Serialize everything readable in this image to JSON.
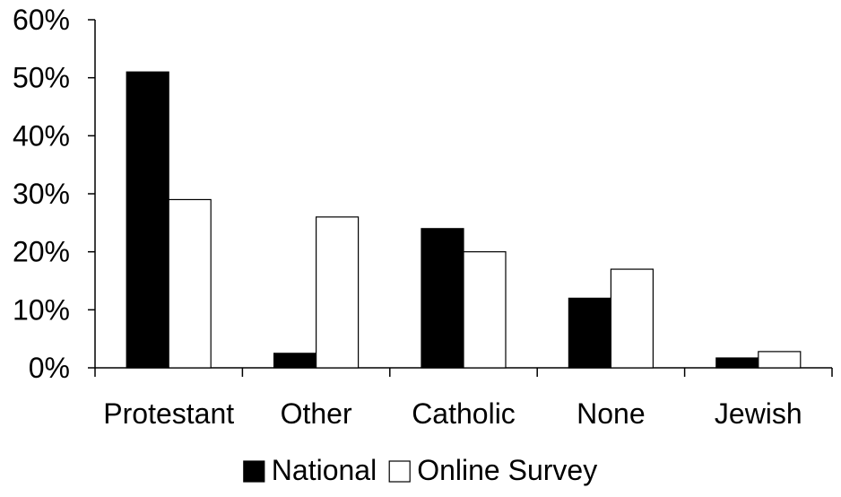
{
  "chart_data": {
    "type": "bar",
    "title": "",
    "xlabel": "",
    "ylabel": "",
    "categories": [
      "Protestant",
      "Other",
      "Catholic",
      "None",
      "Jewish"
    ],
    "series": [
      {
        "name": "National",
        "values": [
          51,
          2.5,
          24,
          12,
          1.7
        ],
        "color": "#000000"
      },
      {
        "name": "Online Survey",
        "values": [
          29,
          26,
          20,
          17,
          2.8
        ],
        "color": "#ffffff"
      }
    ],
    "ylim": [
      0,
      60
    ],
    "yticks": [
      0,
      10,
      20,
      30,
      40,
      50,
      60
    ],
    "ytick_labels": [
      "0%",
      "10%",
      "20%",
      "30%",
      "40%",
      "50%",
      "60%"
    ],
    "grid": false,
    "legend_position": "bottom"
  }
}
